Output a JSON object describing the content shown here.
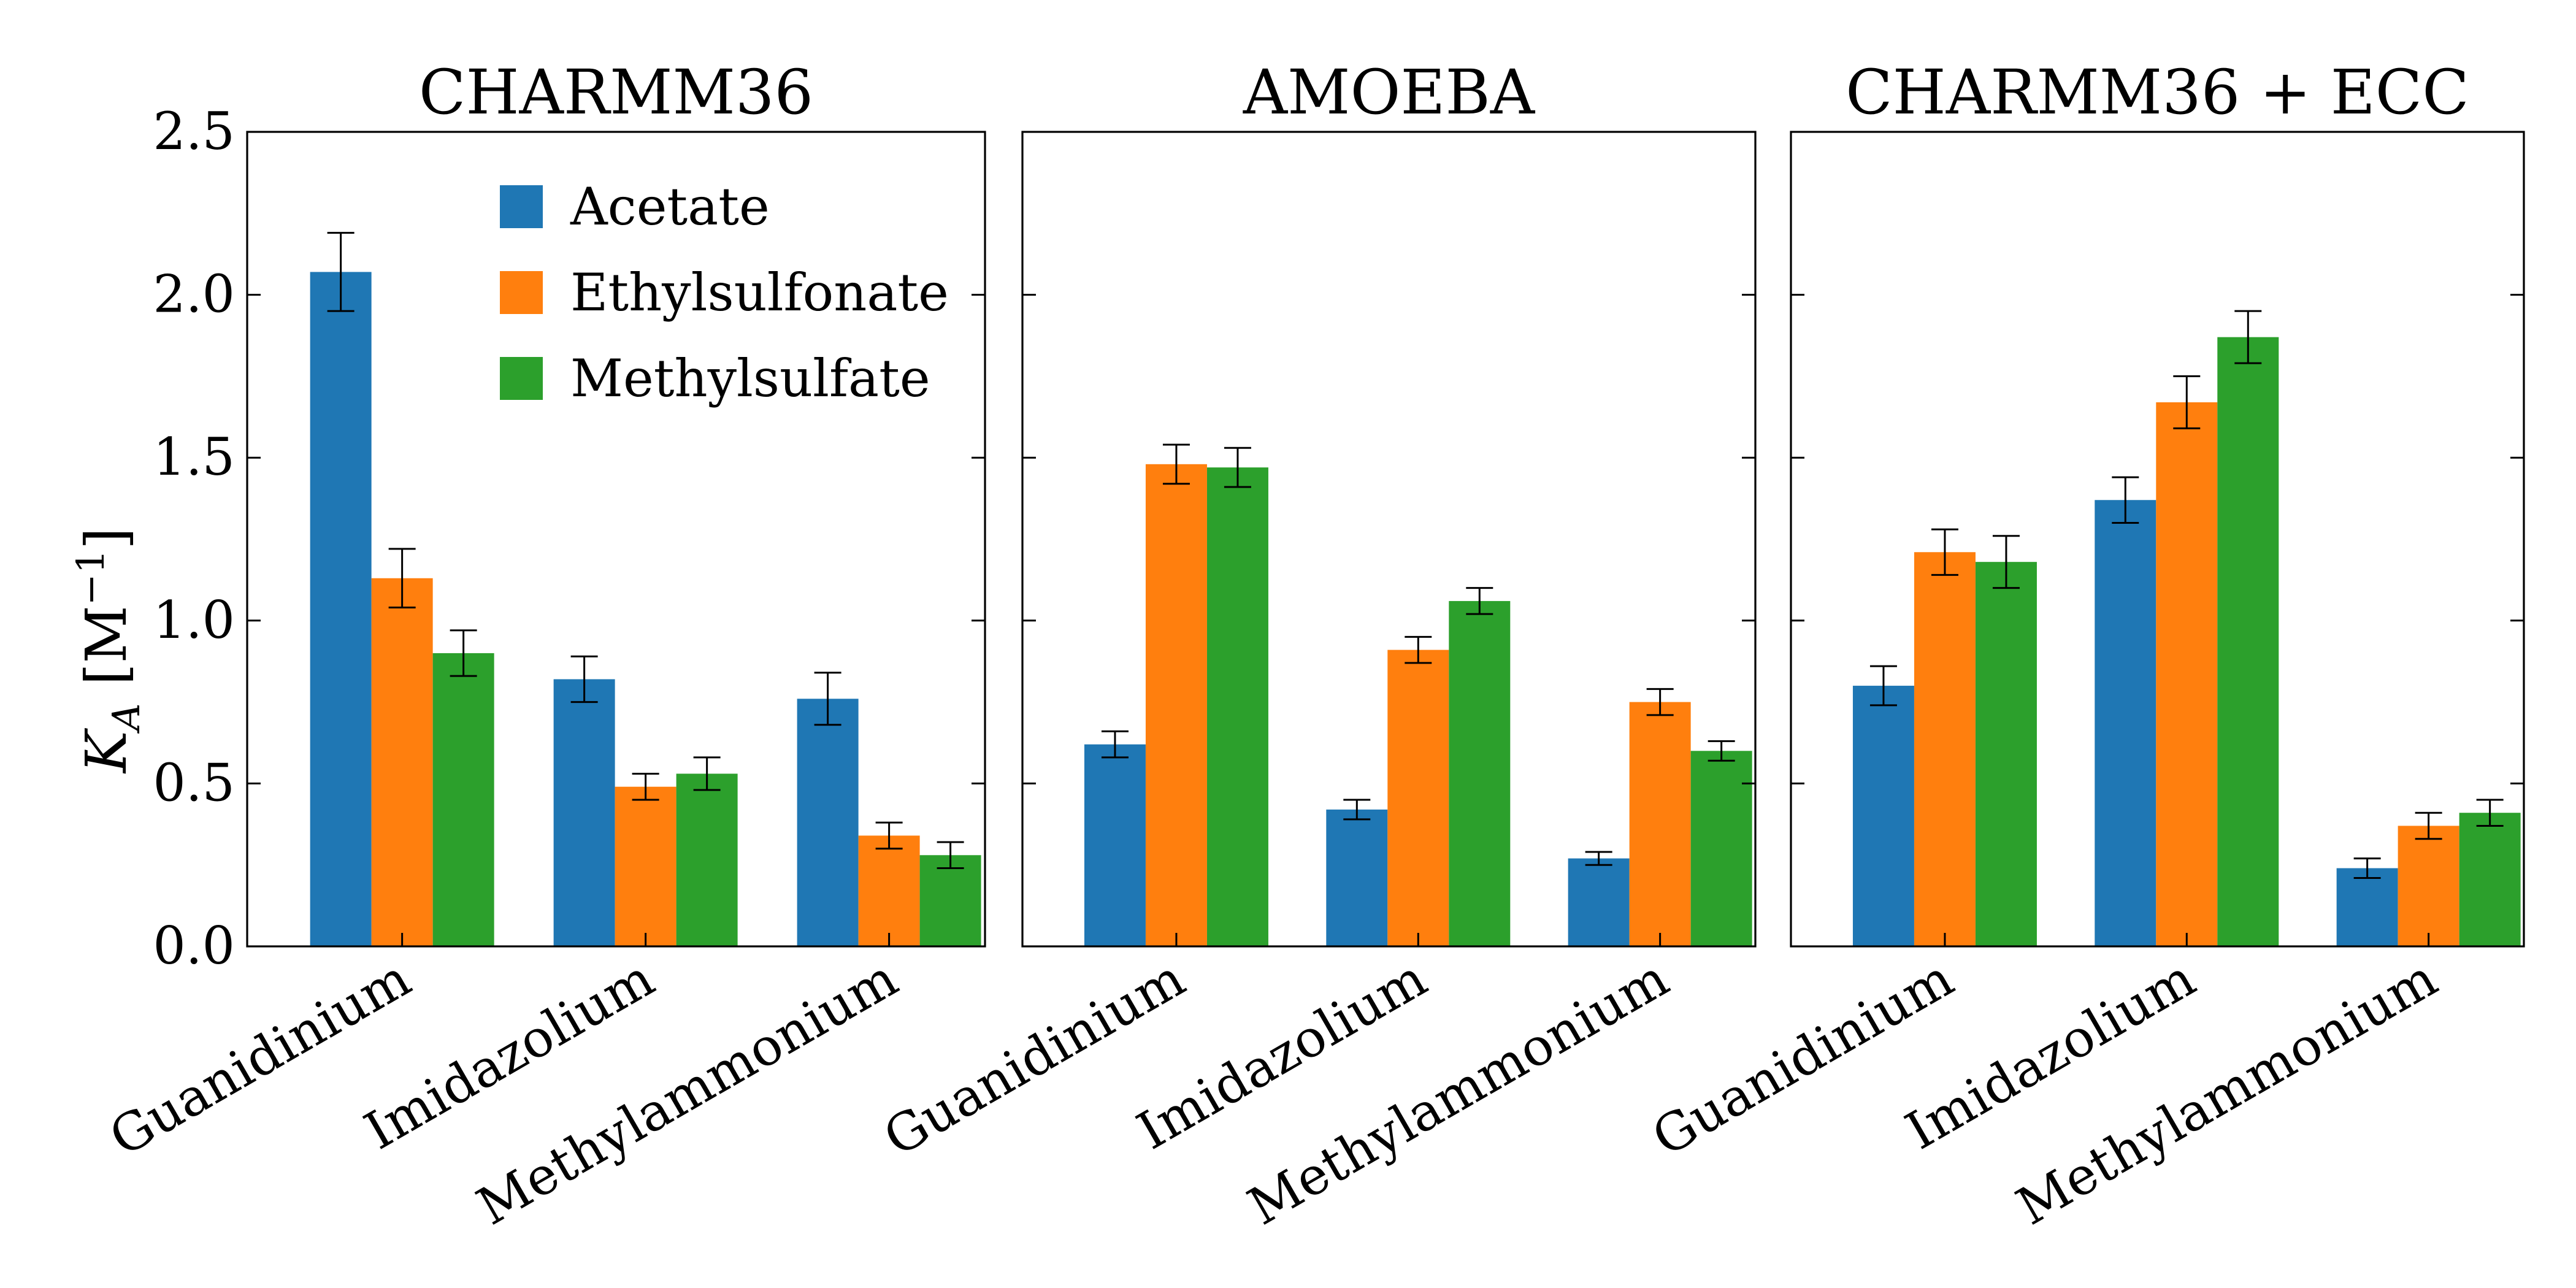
{
  "chart_data": {
    "type": "bar",
    "ylabel_main": "K",
    "ylabel_sub": "A",
    "ylabel_unit_open": " [M",
    "ylabel_unit_exp": "−1",
    "ylabel_unit_close": "]",
    "ylim": [
      0,
      2.5
    ],
    "yticks": [
      "0.0",
      "0.5",
      "1.0",
      "1.5",
      "2.0",
      "2.5"
    ],
    "categories": [
      "Guanidinium",
      "Imidazolium",
      "Methylammonium"
    ],
    "legend": {
      "placement": "upper-center of first panel",
      "entries": [
        "Acetate",
        "Ethylsulfonate",
        "Methylsulfate"
      ]
    },
    "series_colors": [
      "#1f77b4",
      "#ff7f0e",
      "#2ca02c"
    ],
    "panels": [
      {
        "title": "CHARMM36",
        "series": [
          {
            "name": "Acetate",
            "values": [
              2.07,
              0.82,
              0.76
            ],
            "errors": [
              0.12,
              0.07,
              0.08
            ]
          },
          {
            "name": "Ethylsulfonate",
            "values": [
              1.13,
              0.49,
              0.34
            ],
            "errors": [
              0.09,
              0.04,
              0.04
            ]
          },
          {
            "name": "Methylsulfate",
            "values": [
              0.9,
              0.53,
              0.28
            ],
            "errors": [
              0.07,
              0.05,
              0.04
            ]
          }
        ]
      },
      {
        "title": "AMOEBA",
        "series": [
          {
            "name": "Acetate",
            "values": [
              0.62,
              0.42,
              0.27
            ],
            "errors": [
              0.04,
              0.03,
              0.02
            ]
          },
          {
            "name": "Ethylsulfonate",
            "values": [
              1.48,
              0.91,
              0.75
            ],
            "errors": [
              0.06,
              0.04,
              0.04
            ]
          },
          {
            "name": "Methylsulfate",
            "values": [
              1.47,
              1.06,
              0.6
            ],
            "errors": [
              0.06,
              0.04,
              0.03
            ]
          }
        ]
      },
      {
        "title": "CHARMM36 + ECC",
        "series": [
          {
            "name": "Acetate",
            "values": [
              0.8,
              1.37,
              0.24
            ],
            "errors": [
              0.06,
              0.07,
              0.03
            ]
          },
          {
            "name": "Ethylsulfonate",
            "values": [
              1.21,
              1.67,
              0.37
            ],
            "errors": [
              0.07,
              0.08,
              0.04
            ]
          },
          {
            "name": "Methylsulfate",
            "values": [
              1.18,
              1.87,
              0.41
            ],
            "errors": [
              0.08,
              0.08,
              0.04
            ]
          }
        ]
      }
    ]
  }
}
